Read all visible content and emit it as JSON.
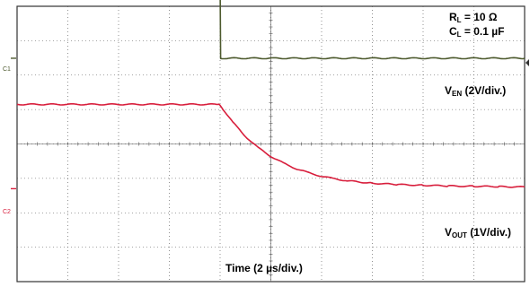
{
  "chart_data": {
    "type": "line",
    "time_unit_label": "µs",
    "xlabel": "Time (2 µs/div.)",
    "x_range": [
      0,
      20
    ],
    "grid": true,
    "divisions": {
      "horizontal": 10,
      "vertical": 8
    },
    "conditions": {
      "rl_sym": "R",
      "rl_sub": "L",
      "rl_val": " = 10 Ω",
      "cl_sym": "C",
      "cl_sub": "L",
      "cl_val": " = 0.1 µF"
    },
    "channels": [
      {
        "id": "C1",
        "marker": "C1",
        "label_sym": "V",
        "label_sub": "EN",
        "label_scale": " (2V/div.)",
        "volts_per_div": 2,
        "color": "#4d5a2e",
        "ground_div_from_top": 1.51,
        "x": [
          0,
          8,
          8.02,
          20
        ],
        "y": [
          4.6,
          4.6,
          0,
          0
        ]
      },
      {
        "id": "C2",
        "marker": "C2",
        "label_sym": "V",
        "label_sub": "OUT",
        "label_scale": " (1V/div.)",
        "volts_per_div": 1,
        "color": "#d81e3c",
        "ground_div_from_top": 5.3,
        "x": [
          0,
          7.95,
          8.0,
          8.5,
          9.0,
          9.5,
          10.0,
          10.5,
          11.0,
          11.5,
          12.0,
          12.5,
          13.0,
          14.0,
          15.0,
          16.0,
          17.0,
          18.0,
          19.0,
          20.0
        ],
        "y": [
          2.45,
          2.45,
          2.43,
          1.93,
          1.52,
          1.19,
          0.94,
          0.74,
          0.58,
          0.46,
          0.36,
          0.29,
          0.23,
          0.16,
          0.12,
          0.1,
          0.08,
          0.07,
          0.06,
          0.05
        ]
      }
    ]
  }
}
